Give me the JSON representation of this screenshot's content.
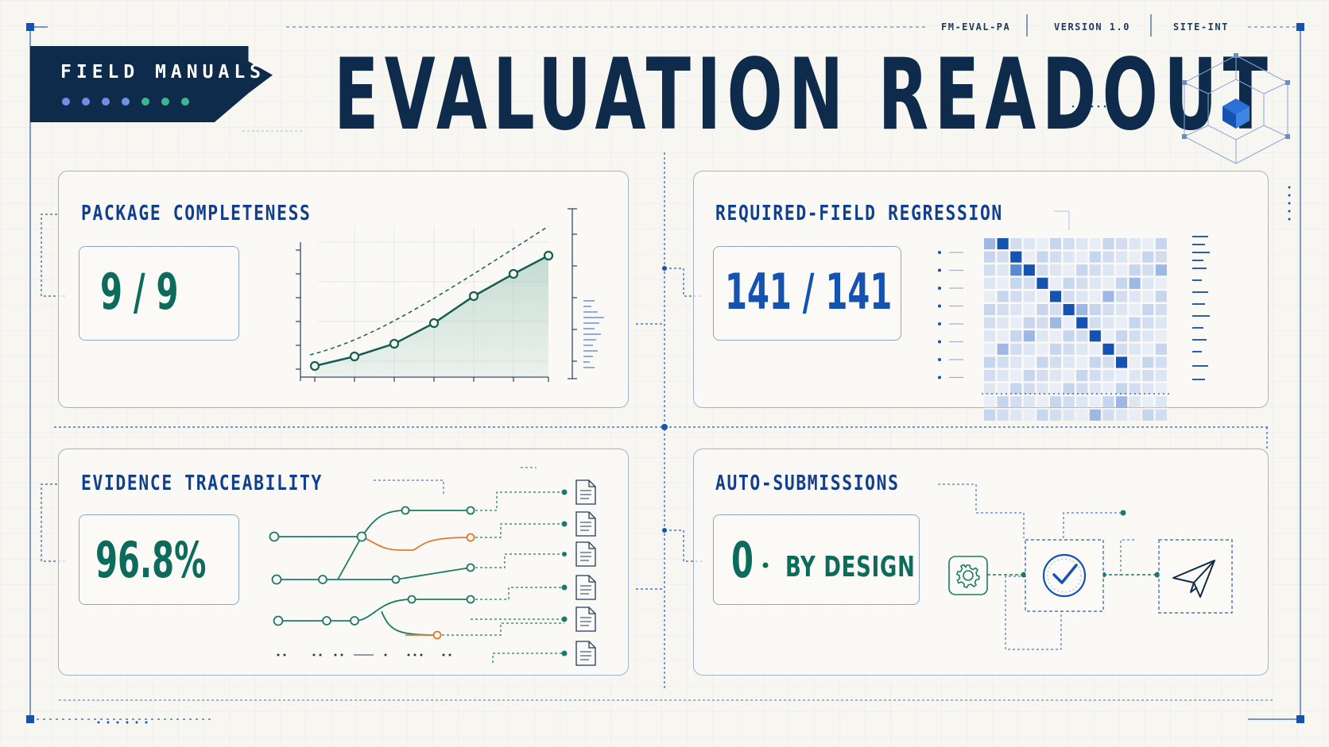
{
  "header": {
    "brand": "FIELD MANUALS",
    "title": "EVALUATION READOUT",
    "meta": [
      "FM-EVAL-PA",
      "VERSION 1.0",
      "SITE-INT"
    ],
    "brand_dot_colors": [
      "#6f8fe6",
      "#6f8fe6",
      "#6f8fe6",
      "#6f8fe6",
      "#3fb58f",
      "#3fb58f",
      "#3fb58f"
    ]
  },
  "panels": {
    "completeness": {
      "title": "PACKAGE COMPLETENESS",
      "value": "9 / 9",
      "color": "#0d6b5c"
    },
    "regression": {
      "title": "REQUIRED-FIELD REGRESSION",
      "value": "141 / 141",
      "color": "#1553b3"
    },
    "traceability": {
      "title": "EVIDENCE TRACEABILITY",
      "value": "96.8%",
      "color": "#0d6b5c"
    },
    "auto": {
      "title": "AUTO-SUBMISSIONS",
      "value": "0",
      "suffix": "BY DESIGN",
      "color": "#0d6b5c"
    }
  },
  "icons": {
    "settings": "gear-icon",
    "check": "check-circle-icon",
    "send": "paper-plane-icon",
    "document": "document-icon",
    "cube": "cube-icon"
  },
  "colors": {
    "navy": "#0f2b4c",
    "blue": "#1553b3",
    "teal": "#0d6b5c",
    "orange": "#e07a2e",
    "line": "#9fb3d1"
  }
}
